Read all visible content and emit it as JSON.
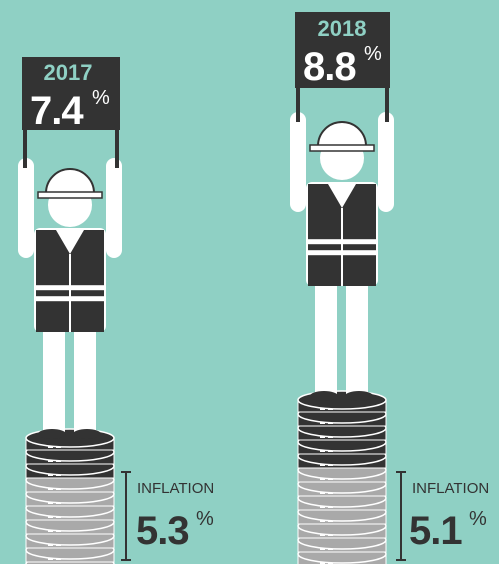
{
  "panels": [
    {
      "year": "2017",
      "growth": "7.4",
      "unit": "%",
      "inflation_label": "INFLATION",
      "inflation": "5.3"
    },
    {
      "year": "2018",
      "growth": "8.8",
      "unit": "%",
      "inflation_label": "INFLATION",
      "inflation": "5.1"
    }
  ]
}
